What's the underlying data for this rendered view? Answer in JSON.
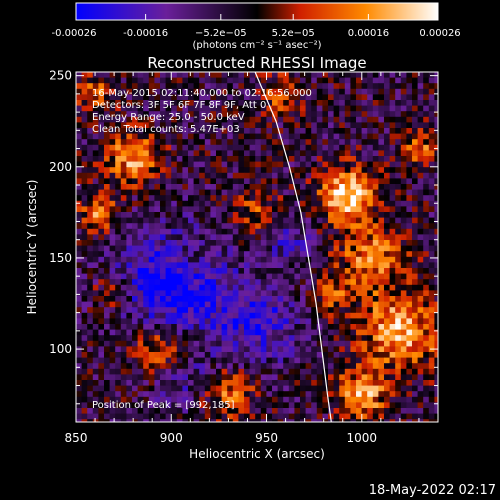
{
  "chart_data": {
    "type": "heatmap",
    "title": "Reconstructed RHESSI Image",
    "xlabel": "Heliocentric X (arcsec)",
    "ylabel": "Heliocentric Y (arcsec)",
    "xlim": [
      850,
      1040
    ],
    "ylim": [
      60,
      252
    ],
    "x_ticks": [
      850,
      900,
      950,
      1000
    ],
    "y_ticks": [
      100,
      150,
      200,
      250
    ],
    "x_tick_labels": [
      "850",
      "900",
      "950",
      "1000"
    ],
    "y_tick_labels": [
      "100",
      "150",
      "200",
      "250"
    ],
    "colorbar": {
      "range": [
        -0.00026,
        0.00026
      ],
      "tick_values": [
        -0.00026,
        -0.00016,
        -5.2e-05,
        5.2e-05,
        0.00016,
        0.00026
      ],
      "tick_labels": [
        "-0.00026",
        "-0.00016",
        "−5.2e−05",
        "5.2e−05",
        "0.00016",
        "0.00026"
      ],
      "unit_label": "(photons cm⁻² s⁻¹ asec⁻²)",
      "colors": [
        "#0000ff",
        "#6a1f9a",
        "#000000",
        "#d02000",
        "#ff8a00",
        "#ffffff"
      ]
    },
    "annotations": [
      "16-May-2015 02:11:40.000 to 02:16:56.000",
      "Detectors: 3F 5F 6F 7F 8F 9F, Att 0",
      "Energy Range: 25.0 - 50.0 keV",
      "Clean    Total counts: 5.47E+03",
      "Position of Peak = [992,185]"
    ],
    "limb_curve": [
      [
        944,
        252
      ],
      [
        955,
        225
      ],
      [
        962,
        200
      ],
      [
        968,
        175
      ],
      [
        972,
        150
      ],
      [
        976,
        125
      ],
      [
        979,
        100
      ],
      [
        982,
        75
      ],
      [
        984,
        60
      ]
    ],
    "peak": [
      992,
      185
    ]
  },
  "footer_date": "18-May-2022 02:17"
}
